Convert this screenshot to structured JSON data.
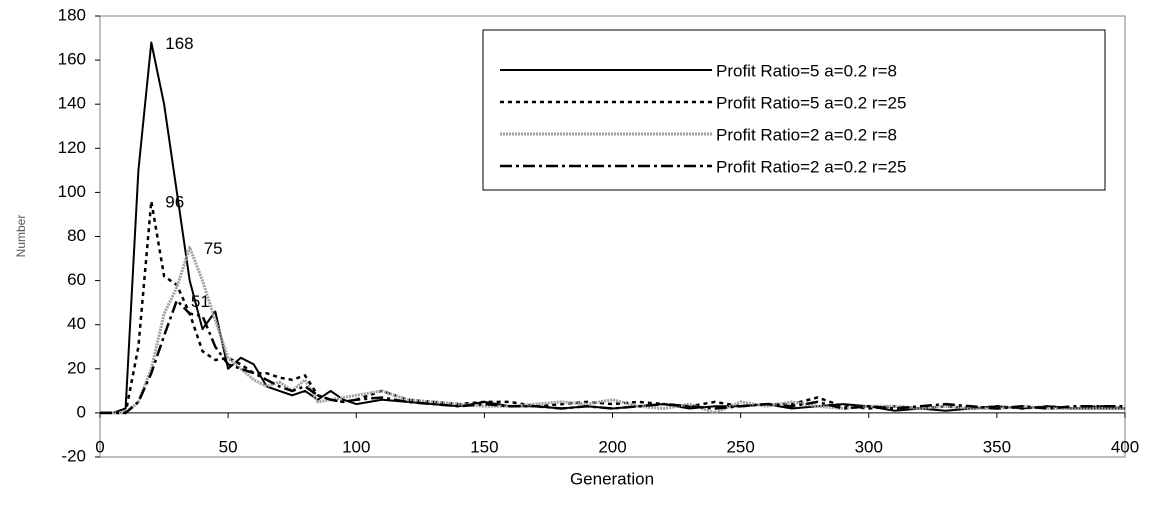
{
  "chart_data": {
    "type": "line",
    "xlabel": "Generation",
    "ylabel": "Number",
    "x": [
      0,
      5,
      10,
      15,
      20,
      25,
      30,
      35,
      40,
      45,
      50,
      55,
      60,
      65,
      70,
      75,
      80,
      85,
      90,
      95,
      100,
      110,
      120,
      130,
      140,
      150,
      160,
      170,
      180,
      190,
      200,
      210,
      220,
      230,
      240,
      250,
      260,
      270,
      280,
      290,
      300,
      310,
      320,
      330,
      340,
      350,
      360,
      370,
      380,
      390,
      400
    ],
    "series": [
      {
        "name": "Profit Ratio=5 a=0.2 r=8",
        "color": "#000000",
        "dash": "solid",
        "width": 2,
        "values": [
          0,
          0,
          2,
          110,
          168,
          140,
          100,
          60,
          38,
          46,
          20,
          25,
          22,
          12,
          10,
          8,
          10,
          6,
          10,
          6,
          4,
          6,
          5,
          4,
          3,
          5,
          3,
          3,
          2,
          3,
          2,
          3,
          4,
          2,
          3,
          3,
          4,
          2,
          3,
          4,
          3,
          1,
          2,
          1,
          2,
          3,
          2,
          3,
          2,
          2,
          2
        ]
      },
      {
        "name": "Profit Ratio=5 a=0.2 r=25",
        "color": "#000000",
        "dash": "dotted",
        "width": 2.5,
        "values": [
          0,
          0,
          0,
          30,
          96,
          62,
          58,
          45,
          28,
          24,
          25,
          22,
          18,
          18,
          16,
          15,
          17,
          8,
          6,
          5,
          6,
          10,
          6,
          5,
          4,
          5,
          5,
          3,
          4,
          5,
          4,
          5,
          4,
          3,
          5,
          3,
          4,
          4,
          7,
          3,
          2,
          3,
          2,
          3,
          2,
          3,
          2,
          3,
          2,
          3,
          2
        ]
      },
      {
        "name": "Profit Ratio=2 a=0.2 r=8",
        "color": "#a0a0a0",
        "dash": "fine",
        "width": 3,
        "values": [
          0,
          0,
          0,
          5,
          20,
          45,
          57,
          75,
          60,
          42,
          25,
          20,
          15,
          12,
          14,
          10,
          15,
          5,
          6,
          7,
          8,
          10,
          6,
          5,
          4,
          3,
          3,
          4,
          5,
          4,
          6,
          3,
          2,
          4,
          0,
          5,
          3,
          5,
          3,
          2,
          3,
          3,
          2,
          3,
          2,
          2,
          3,
          2,
          2,
          2,
          2
        ]
      },
      {
        "name": "Profit Ratio=2 a=0.2 r=25",
        "color": "#000000",
        "dash": "dashdot",
        "width": 2.5,
        "values": [
          0,
          0,
          0,
          5,
          18,
          35,
          51,
          45,
          44,
          30,
          22,
          20,
          18,
          15,
          12,
          10,
          12,
          8,
          6,
          5,
          6,
          7,
          5,
          4,
          3,
          4,
          3,
          3,
          2,
          3,
          2,
          3,
          4,
          3,
          2,
          3,
          4,
          3,
          5,
          2,
          3,
          2,
          3,
          4,
          3,
          2,
          3,
          2,
          3,
          3,
          3
        ]
      }
    ],
    "peak_labels": true,
    "xlim": [
      0,
      400
    ],
    "xticks": [
      0,
      50,
      100,
      150,
      200,
      250,
      300,
      350,
      400
    ],
    "ylim": [
      -20,
      180
    ],
    "yticks": [
      -20,
      0,
      20,
      40,
      60,
      80,
      100,
      120,
      140,
      160,
      180
    ],
    "legend": "upper right"
  }
}
